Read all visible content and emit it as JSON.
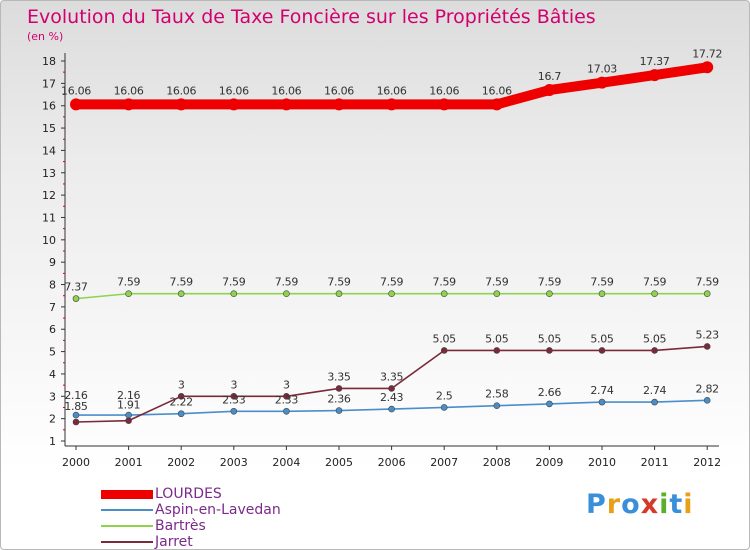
{
  "header": {
    "title": "Evolution du Taux de Taxe Foncière sur les Propriétés Bâties",
    "unit": "(en %)"
  },
  "brand": {
    "letters": [
      "P",
      "r",
      "o",
      "x",
      "i",
      "t",
      "i"
    ],
    "colors": [
      "#3a8fd9",
      "#e8a018",
      "#3a8fd9",
      "#d43a2a",
      "#5ab02a",
      "#3a8fd9",
      "#e8a018"
    ]
  },
  "chart_data": {
    "type": "line",
    "title": "Evolution du Taux de Taxe Foncière sur les Propriétés Bâties",
    "ylabel": "(en %)",
    "xlabel": "",
    "ylim": [
      1,
      18
    ],
    "yticks": [
      1,
      2,
      3,
      4,
      5,
      6,
      7,
      8,
      9,
      10,
      11,
      12,
      13,
      14,
      15,
      16,
      17,
      18
    ],
    "categories": [
      "2000",
      "2001",
      "2002",
      "2003",
      "2004",
      "2005",
      "2006",
      "2007",
      "2008",
      "2009",
      "2010",
      "2011",
      "2012"
    ],
    "grid": false,
    "legend_position": "bottom-left",
    "series": [
      {
        "name": "LOURDES",
        "color": "#ee0000",
        "values": [
          16.06,
          16.06,
          16.06,
          16.06,
          16.06,
          16.06,
          16.06,
          16.06,
          16.06,
          16.7,
          17.03,
          17.37,
          17.72
        ],
        "labels": [
          "16.06",
          "16.06",
          "16.06",
          "16.06",
          "16.06",
          "16.06",
          "16.06",
          "16.06",
          "16.06",
          "16.7",
          "17.03",
          "17.37",
          "17.72"
        ]
      },
      {
        "name": "Aspin-en-Lavedan",
        "color": "#4a8ec9",
        "values": [
          2.16,
          2.16,
          2.22,
          2.33,
          2.33,
          2.36,
          2.43,
          2.5,
          2.58,
          2.66,
          2.74,
          2.74,
          2.82
        ],
        "labels": [
          "2.16",
          "2.16",
          "2.22",
          "2.33",
          "2.33",
          "2.36",
          "2.43",
          "2.5",
          "2.58",
          "2.66",
          "2.74",
          "2.74",
          "2.82"
        ]
      },
      {
        "name": "Bartrès",
        "color": "#8ed44a",
        "values": [
          7.37,
          7.59,
          7.59,
          7.59,
          7.59,
          7.59,
          7.59,
          7.59,
          7.59,
          7.59,
          7.59,
          7.59,
          7.59
        ],
        "labels": [
          "7.37",
          "7.59",
          "7.59",
          "7.59",
          "7.59",
          "7.59",
          "7.59",
          "7.59",
          "7.59",
          "7.59",
          "7.59",
          "7.59",
          "7.59"
        ]
      },
      {
        "name": "Jarret",
        "color": "#7a2a3a",
        "values": [
          1.85,
          1.91,
          3,
          3,
          3,
          3.35,
          3.35,
          5.05,
          5.05,
          5.05,
          5.05,
          5.05,
          5.23
        ],
        "labels": [
          "1.85",
          "1.91",
          "3",
          "3",
          "3",
          "3.35",
          "3.35",
          "5.05",
          "5.05",
          "5.05",
          "5.05",
          "5.05",
          "5.23"
        ]
      }
    ]
  }
}
